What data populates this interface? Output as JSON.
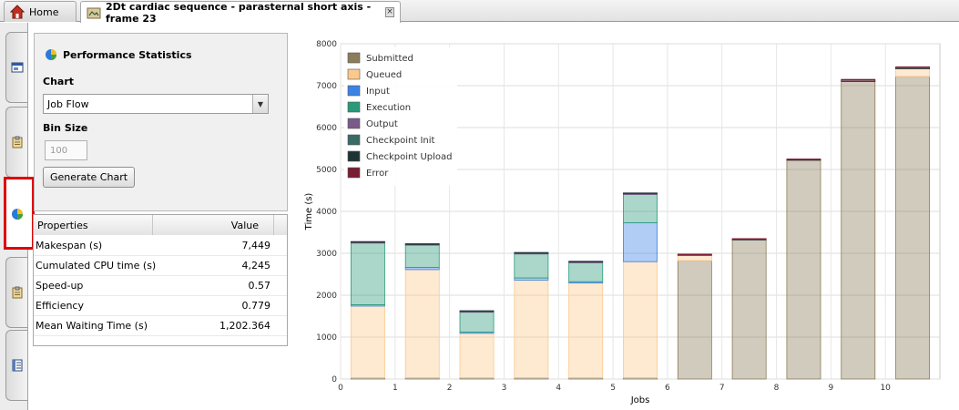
{
  "tabs": {
    "home_label": "Home",
    "sim_label": "2Dt cardiac sequence - parasternal short axis - frame 23",
    "close_glyph": "×"
  },
  "panel": {
    "title": "Performance Statistics",
    "chart_label": "Chart",
    "chart_selected": "Job Flow",
    "bin_size_label": "Bin Size",
    "bin_size_value": "100",
    "generate_button": "Generate Chart"
  },
  "properties": {
    "header_property": "Properties",
    "header_value": "Value",
    "rows": [
      {
        "name": "Makespan (s)",
        "value": "7,449"
      },
      {
        "name": "Cumulated CPU time (s)",
        "value": "4,245"
      },
      {
        "name": "Speed-up",
        "value": "0.57"
      },
      {
        "name": "Efficiency",
        "value": "0.779"
      },
      {
        "name": "Mean Waiting Time (s)",
        "value": "1,202.364"
      }
    ]
  },
  "icons": {
    "home": "home-icon",
    "simulation": "simulation-icon",
    "strip": [
      "window-icon",
      "clipboard-icon",
      "pie-chart-icon",
      "clipboard-icon",
      "document-icon"
    ]
  },
  "chart_data": {
    "type": "bar",
    "stacked": true,
    "xlabel": "Jobs",
    "ylabel": "Time (s)",
    "categories": [
      "0",
      "1",
      "2",
      "3",
      "4",
      "5",
      "6",
      "7",
      "8",
      "9",
      "10"
    ],
    "ylim": [
      0,
      8000
    ],
    "yticks": [
      0,
      1000,
      2000,
      3000,
      4000,
      5000,
      6000,
      7000,
      8000
    ],
    "grid": true,
    "legend_position": "top-left",
    "series": [
      {
        "name": "Submitted",
        "color": "#8b7d5a",
        "values": [
          30,
          30,
          30,
          30,
          30,
          30,
          2820,
          3320,
          5220,
          7100,
          7220
        ]
      },
      {
        "name": "Queued",
        "color": "#fcc98c",
        "values": [
          1710,
          2580,
          1060,
          2330,
          2260,
          2770,
          130,
          0,
          0,
          0,
          180
        ]
      },
      {
        "name": "Input",
        "color": "#3b82e6",
        "values": [
          30,
          50,
          30,
          50,
          30,
          930,
          0,
          0,
          0,
          0,
          0
        ]
      },
      {
        "name": "Execution",
        "color": "#2a9a78",
        "values": [
          1480,
          540,
          480,
          580,
          460,
          680,
          0,
          0,
          0,
          0,
          0
        ]
      },
      {
        "name": "Output",
        "color": "#7a5a8a",
        "values": [
          10,
          10,
          10,
          10,
          10,
          10,
          0,
          0,
          0,
          0,
          0
        ]
      },
      {
        "name": "Checkpoint Init",
        "color": "#3a6a66",
        "values": [
          0,
          0,
          0,
          0,
          0,
          0,
          0,
          0,
          0,
          0,
          0
        ]
      },
      {
        "name": "Checkpoint Upload",
        "color": "#1d3434",
        "values": [
          20,
          20,
          20,
          20,
          20,
          20,
          20,
          20,
          20,
          30,
          30
        ]
      },
      {
        "name": "Error",
        "color": "#7a1c32",
        "values": [
          0,
          0,
          0,
          0,
          0,
          0,
          10,
          10,
          10,
          20,
          20
        ]
      }
    ]
  }
}
